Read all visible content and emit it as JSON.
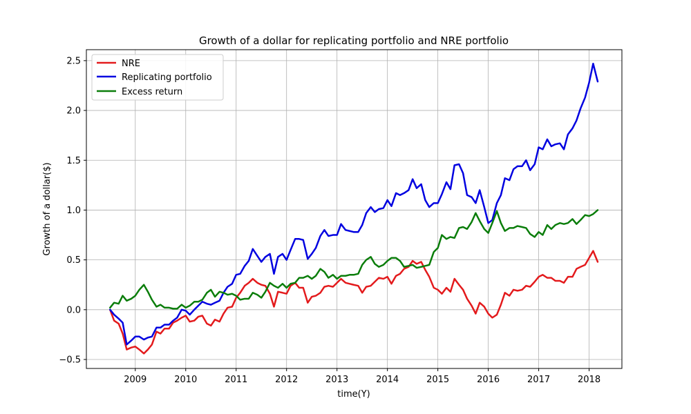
{
  "chart_data": {
    "type": "line",
    "title": "Growth of a dollar for replicating portfolio and NRE portfolio",
    "xlabel": "time(Y)",
    "ylabel": "Growth of a dollar($)",
    "xlim": [
      2008.03,
      2018.65
    ],
    "ylim": [
      -0.59,
      2.61
    ],
    "xticks": [
      2009,
      2010,
      2011,
      2012,
      2013,
      2014,
      2015,
      2016,
      2017,
      2018
    ],
    "yticks": [
      -0.5,
      0.0,
      0.5,
      1.0,
      1.5,
      2.0,
      2.5
    ],
    "ytick_labels": [
      "−0.5",
      "0.0",
      "0.5",
      "1.0",
      "1.5",
      "2.0",
      "2.5"
    ],
    "grid": true,
    "legend_position": "upper left",
    "x": [
      2008.5,
      2008.58,
      2008.67,
      2008.75,
      2008.83,
      2008.92,
      2009.0,
      2009.08,
      2009.17,
      2009.25,
      2009.33,
      2009.42,
      2009.5,
      2009.58,
      2009.67,
      2009.75,
      2009.83,
      2009.92,
      2010.0,
      2010.08,
      2010.17,
      2010.25,
      2010.33,
      2010.42,
      2010.5,
      2010.58,
      2010.67,
      2010.75,
      2010.83,
      2010.92,
      2011.0,
      2011.08,
      2011.17,
      2011.25,
      2011.33,
      2011.42,
      2011.5,
      2011.58,
      2011.67,
      2011.75,
      2011.83,
      2011.92,
      2012.0,
      2012.08,
      2012.17,
      2012.25,
      2012.33,
      2012.42,
      2012.5,
      2012.58,
      2012.67,
      2012.75,
      2012.83,
      2012.92,
      2013.0,
      2013.08,
      2013.17,
      2013.25,
      2013.33,
      2013.42,
      2013.5,
      2013.58,
      2013.67,
      2013.75,
      2013.83,
      2013.92,
      2014.0,
      2014.08,
      2014.17,
      2014.25,
      2014.33,
      2014.42,
      2014.5,
      2014.58,
      2014.67,
      2014.75,
      2014.83,
      2014.92,
      2015.0,
      2015.08,
      2015.17,
      2015.25,
      2015.33,
      2015.42,
      2015.5,
      2015.58,
      2015.67,
      2015.75,
      2015.83,
      2015.92,
      2016.0,
      2016.08,
      2016.17,
      2016.25,
      2016.33,
      2016.42,
      2016.5,
      2016.58,
      2016.67,
      2016.75,
      2016.83,
      2016.92,
      2017.0,
      2017.08,
      2017.17,
      2017.25,
      2017.33,
      2017.42,
      2017.5,
      2017.58,
      2017.67,
      2017.75,
      2017.83,
      2017.92,
      2018.0,
      2018.08,
      2018.17
    ],
    "series": [
      {
        "name": "NRE",
        "color": "#e31a1c",
        "values": [
          0.0,
          -0.11,
          -0.14,
          -0.24,
          -0.4,
          -0.38,
          -0.37,
          -0.4,
          -0.44,
          -0.4,
          -0.35,
          -0.22,
          -0.24,
          -0.19,
          -0.19,
          -0.13,
          -0.11,
          -0.08,
          -0.06,
          -0.12,
          -0.11,
          -0.07,
          -0.06,
          -0.14,
          -0.16,
          -0.1,
          -0.12,
          -0.04,
          0.02,
          0.03,
          0.12,
          0.17,
          0.24,
          0.27,
          0.31,
          0.27,
          0.25,
          0.24,
          0.16,
          0.03,
          0.18,
          0.17,
          0.16,
          0.24,
          0.27,
          0.22,
          0.22,
          0.07,
          0.13,
          0.14,
          0.17,
          0.23,
          0.24,
          0.23,
          0.27,
          0.31,
          0.27,
          0.26,
          0.25,
          0.24,
          0.17,
          0.23,
          0.24,
          0.28,
          0.32,
          0.31,
          0.33,
          0.26,
          0.34,
          0.36,
          0.41,
          0.43,
          0.49,
          0.46,
          0.48,
          0.4,
          0.33,
          0.22,
          0.2,
          0.16,
          0.22,
          0.18,
          0.31,
          0.25,
          0.2,
          0.11,
          0.04,
          -0.04,
          0.07,
          0.03,
          -0.04,
          -0.08,
          -0.05,
          0.05,
          0.17,
          0.14,
          0.2,
          0.19,
          0.2,
          0.24,
          0.23,
          0.28,
          0.33,
          0.35,
          0.32,
          0.32,
          0.29,
          0.29,
          0.27,
          0.33,
          0.33,
          0.41,
          0.43,
          0.45,
          0.52,
          0.59,
          0.48
        ]
      },
      {
        "name": "Replicating portfolio",
        "color": "#0000e0",
        "values": [
          0.0,
          -0.05,
          -0.09,
          -0.13,
          -0.35,
          -0.31,
          -0.27,
          -0.27,
          -0.3,
          -0.28,
          -0.27,
          -0.18,
          -0.18,
          -0.15,
          -0.15,
          -0.11,
          -0.08,
          0.0,
          -0.01,
          -0.05,
          0.0,
          0.04,
          0.08,
          0.06,
          0.05,
          0.07,
          0.09,
          0.17,
          0.23,
          0.26,
          0.35,
          0.36,
          0.44,
          0.49,
          0.61,
          0.54,
          0.48,
          0.53,
          0.56,
          0.36,
          0.53,
          0.56,
          0.5,
          0.6,
          0.71,
          0.71,
          0.7,
          0.51,
          0.56,
          0.62,
          0.74,
          0.8,
          0.74,
          0.75,
          0.75,
          0.86,
          0.8,
          0.79,
          0.78,
          0.78,
          0.85,
          0.97,
          1.03,
          0.98,
          1.01,
          1.02,
          1.1,
          1.04,
          1.17,
          1.15,
          1.17,
          1.2,
          1.31,
          1.22,
          1.26,
          1.1,
          1.03,
          1.07,
          1.07,
          1.16,
          1.28,
          1.21,
          1.45,
          1.46,
          1.37,
          1.15,
          1.13,
          1.07,
          1.2,
          1.03,
          0.87,
          0.9,
          1.07,
          1.15,
          1.32,
          1.3,
          1.41,
          1.44,
          1.44,
          1.5,
          1.4,
          1.46,
          1.63,
          1.61,
          1.71,
          1.64,
          1.66,
          1.67,
          1.61,
          1.76,
          1.82,
          1.9,
          2.02,
          2.13,
          2.28,
          2.47,
          2.29
        ]
      },
      {
        "name": "Excess return",
        "color": "#0a7d0a",
        "values": [
          0.02,
          0.07,
          0.06,
          0.14,
          0.09,
          0.11,
          0.14,
          0.2,
          0.25,
          0.18,
          0.1,
          0.03,
          0.05,
          0.02,
          0.02,
          0.01,
          0.01,
          0.05,
          0.02,
          0.04,
          0.08,
          0.08,
          0.1,
          0.17,
          0.2,
          0.13,
          0.18,
          0.17,
          0.15,
          0.16,
          0.14,
          0.1,
          0.11,
          0.11,
          0.17,
          0.15,
          0.12,
          0.18,
          0.27,
          0.24,
          0.22,
          0.26,
          0.22,
          0.26,
          0.27,
          0.32,
          0.32,
          0.34,
          0.31,
          0.34,
          0.41,
          0.38,
          0.32,
          0.35,
          0.31,
          0.34,
          0.34,
          0.35,
          0.35,
          0.36,
          0.45,
          0.5,
          0.53,
          0.46,
          0.43,
          0.45,
          0.49,
          0.52,
          0.52,
          0.49,
          0.43,
          0.44,
          0.45,
          0.42,
          0.43,
          0.44,
          0.45,
          0.58,
          0.62,
          0.75,
          0.71,
          0.73,
          0.72,
          0.82,
          0.83,
          0.81,
          0.88,
          0.97,
          0.89,
          0.81,
          0.77,
          0.87,
          0.99,
          0.87,
          0.79,
          0.82,
          0.82,
          0.84,
          0.83,
          0.82,
          0.76,
          0.73,
          0.78,
          0.75,
          0.85,
          0.81,
          0.85,
          0.87,
          0.86,
          0.87,
          0.91,
          0.86,
          0.9,
          0.95,
          0.94,
          0.96,
          1.0
        ]
      }
    ]
  }
}
